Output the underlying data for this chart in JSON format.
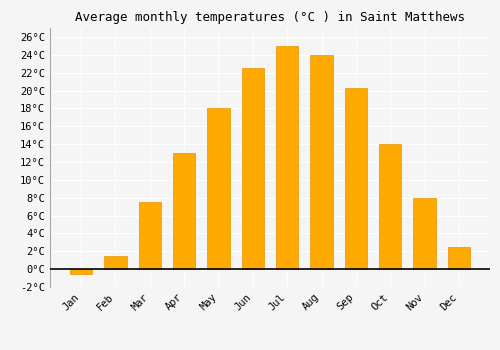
{
  "title": "Average monthly temperatures (°C ) in Saint Matthews",
  "months": [
    "Jan",
    "Feb",
    "Mar",
    "Apr",
    "May",
    "Jun",
    "Jul",
    "Aug",
    "Sep",
    "Oct",
    "Nov",
    "Dec"
  ],
  "values": [
    -0.5,
    1.5,
    7.5,
    13.0,
    18.0,
    22.5,
    25.0,
    24.0,
    20.3,
    14.0,
    8.0,
    2.5
  ],
  "bar_color": "#FFAA00",
  "bar_edge_color": "#E89400",
  "ylim": [
    -2,
    27
  ],
  "yticks": [
    -2,
    0,
    2,
    4,
    6,
    8,
    10,
    12,
    14,
    16,
    18,
    20,
    22,
    24,
    26
  ],
  "ytick_labels": [
    "-2°C",
    "0°C",
    "2°C",
    "4°C",
    "6°C",
    "8°C",
    "10°C",
    "12°C",
    "14°C",
    "16°C",
    "18°C",
    "20°C",
    "22°C",
    "24°C",
    "26°C"
  ],
  "background_color": "#f5f5f5",
  "grid_color": "#ffffff",
  "title_fontsize": 9,
  "tick_fontsize": 7.5,
  "bar_width": 0.65
}
